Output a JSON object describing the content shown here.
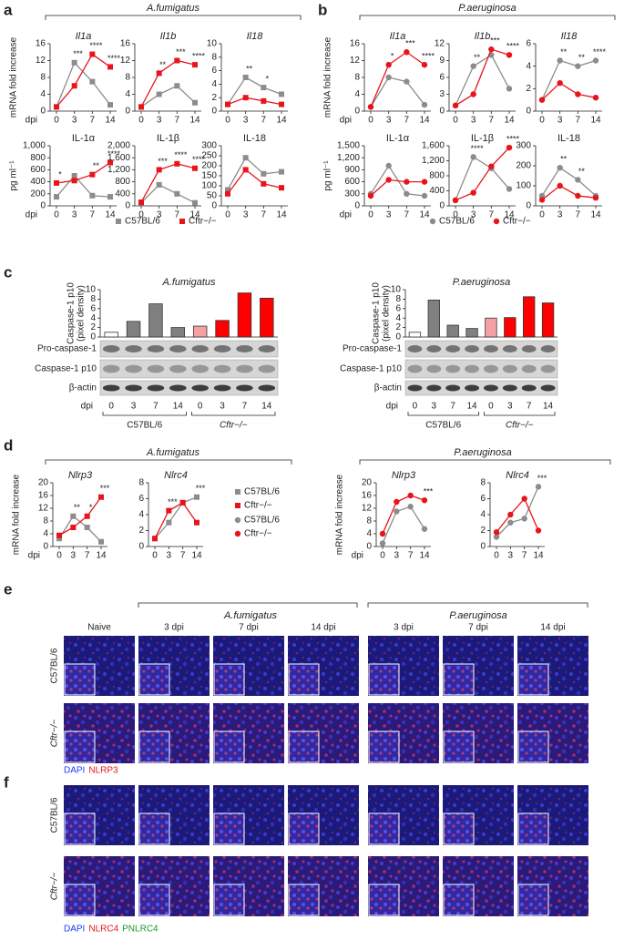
{
  "panels": {
    "a": {
      "label": "a",
      "header": "A.fumigatus"
    },
    "b": {
      "label": "b",
      "header": "P.aeruginosa"
    },
    "c": {
      "label": "c"
    },
    "d": {
      "label": "d",
      "headers": [
        "A.fumigatus",
        "P.aeruginosa"
      ]
    },
    "e": {
      "label": "e",
      "groups": [
        "A.fumigatus",
        "P.aeruginosa"
      ],
      "columns": [
        "Naive",
        "3 dpi",
        "7 dpi",
        "14 dpi",
        "3 dpi",
        "7 dpi",
        "14 dpi"
      ],
      "rows": [
        "C57BL/6",
        "Cftr−/−"
      ],
      "stain": [
        "DAPI",
        "NLRP3"
      ]
    },
    "f": {
      "label": "f",
      "rows": [
        "C57BL/6",
        "Cftr−/−"
      ],
      "stain": [
        "DAPI",
        "NLRC4",
        "PNLRC4"
      ]
    }
  },
  "chart_data": [
    {
      "type": "line",
      "title": "Il1a",
      "ylabel": "mRNA fold increase",
      "xlabel": "dpi",
      "categories": [
        "0",
        "3",
        "7",
        "14"
      ],
      "ylim": [
        0,
        16
      ],
      "yticks": [
        0,
        4,
        8,
        12,
        16
      ],
      "series": [
        {
          "name": "C57BL/6",
          "color": "#8c8c8c",
          "marker": "square",
          "values": [
            1,
            11.5,
            7,
            1.5
          ]
        },
        {
          "name": "Cftr−/−",
          "color": "#e8141b",
          "marker": "square",
          "values": [
            1,
            6,
            13.5,
            10.5
          ]
        }
      ],
      "annotations": [
        {
          "x": "3",
          "text": "***"
        },
        {
          "x": "7",
          "text": "****"
        },
        {
          "x": "14",
          "text": "****"
        }
      ]
    },
    {
      "type": "line",
      "title": "Il1b",
      "categories": [
        "0",
        "3",
        "7",
        "14"
      ],
      "ylim": [
        0,
        16
      ],
      "yticks": [
        0,
        4,
        8,
        12,
        16
      ],
      "series": [
        {
          "name": "C57BL/6",
          "color": "#8c8c8c",
          "marker": "square",
          "values": [
            1,
            4,
            6,
            2
          ]
        },
        {
          "name": "Cftr−/−",
          "color": "#e8141b",
          "marker": "square",
          "values": [
            1,
            9,
            12,
            11
          ]
        }
      ],
      "annotations": [
        {
          "x": "3",
          "text": "**"
        },
        {
          "x": "7",
          "text": "***"
        },
        {
          "x": "14",
          "text": "****"
        }
      ]
    },
    {
      "type": "line",
      "title": "Il18",
      "categories": [
        "0",
        "3",
        "7",
        "14"
      ],
      "ylim": [
        0,
        10
      ],
      "yticks": [
        0,
        2,
        4,
        6,
        8,
        10
      ],
      "series": [
        {
          "name": "C57BL/6",
          "color": "#8c8c8c",
          "marker": "square",
          "values": [
            1,
            5,
            3.5,
            2.5
          ]
        },
        {
          "name": "Cftr−/−",
          "color": "#e8141b",
          "marker": "square",
          "values": [
            1,
            2,
            1.5,
            1
          ]
        }
      ],
      "annotations": [
        {
          "x": "3",
          "text": "**"
        },
        {
          "x": "7",
          "text": "*"
        }
      ]
    },
    {
      "type": "line",
      "title": "IL-1α",
      "ylabel": "pg ml⁻¹",
      "xlabel": "dpi",
      "categories": [
        "0",
        "3",
        "7",
        "14"
      ],
      "ylim": [
        0,
        1000
      ],
      "yticks": [
        0,
        200,
        400,
        600,
        800,
        {
          "value": 1000,
          "label": "1,000"
        }
      ],
      "series": [
        {
          "name": "C57BL/6",
          "color": "#8c8c8c",
          "marker": "square",
          "values": [
            150,
            500,
            170,
            150
          ]
        },
        {
          "name": "Cftr−/−",
          "color": "#e8141b",
          "marker": "square",
          "values": [
            380,
            420,
            520,
            720
          ]
        }
      ],
      "annotations": [
        {
          "x": "0",
          "text": "*"
        },
        {
          "x": "7",
          "text": "**"
        },
        {
          "x": "14",
          "text": "****"
        }
      ]
    },
    {
      "type": "line",
      "title": "IL-1β",
      "categories": [
        "0",
        "3",
        "7",
        "14"
      ],
      "ylim": [
        0,
        2000
      ],
      "yticks": [
        0,
        400,
        800,
        {
          "value": 1200,
          "label": "1,200"
        },
        {
          "value": 1600,
          "label": "1,600"
        },
        {
          "value": 2000,
          "label": "2,000"
        }
      ],
      "series": [
        {
          "name": "C57BL/6",
          "color": "#8c8c8c",
          "marker": "square",
          "values": [
            100,
            700,
            400,
            100
          ]
        },
        {
          "name": "Cftr−/−",
          "color": "#e8141b",
          "marker": "square",
          "values": [
            120,
            1200,
            1400,
            1250
          ]
        }
      ],
      "annotations": [
        {
          "x": "3",
          "text": "***"
        },
        {
          "x": "7",
          "text": "****"
        },
        {
          "x": "14",
          "text": "****"
        }
      ]
    },
    {
      "type": "line",
      "title": "IL-18",
      "categories": [
        "0",
        "3",
        "7",
        "14"
      ],
      "ylim": [
        0,
        300
      ],
      "yticks": [
        0,
        50,
        100,
        150,
        200,
        250,
        300
      ],
      "series": [
        {
          "name": "C57BL/6",
          "color": "#8c8c8c",
          "marker": "square",
          "values": [
            80,
            240,
            160,
            170
          ]
        },
        {
          "name": "Cftr−/−",
          "color": "#e8141b",
          "marker": "square",
          "values": [
            60,
            180,
            110,
            90
          ]
        }
      ]
    },
    {
      "type": "line",
      "title": "Il1a",
      "ylabel": "mRNA fold increase",
      "xlabel": "dpi",
      "categories": [
        "0",
        "3",
        "7",
        "14"
      ],
      "ylim": [
        0,
        16
      ],
      "yticks": [
        0,
        4,
        8,
        12,
        16
      ],
      "series": [
        {
          "name": "C57BL/6",
          "color": "#8c8c8c",
          "marker": "circle",
          "values": [
            1,
            8,
            7,
            1.5
          ]
        },
        {
          "name": "Cftr−/−",
          "color": "#e8141b",
          "marker": "circle",
          "values": [
            1,
            11,
            14,
            11
          ]
        }
      ],
      "annotations": [
        {
          "x": "3",
          "text": "*"
        },
        {
          "x": "7",
          "text": "***"
        },
        {
          "x": "14",
          "text": "****"
        }
      ]
    },
    {
      "type": "line",
      "title": "Il1b",
      "categories": [
        "0",
        "3",
        "7",
        "14"
      ],
      "ylim": [
        0,
        12
      ],
      "yticks": [
        0,
        3,
        6,
        9,
        12
      ],
      "series": [
        {
          "name": "C57BL/6",
          "color": "#8c8c8c",
          "marker": "circle",
          "values": [
            1,
            8,
            10,
            4
          ]
        },
        {
          "name": "Cftr−/−",
          "color": "#e8141b",
          "marker": "circle",
          "values": [
            1,
            3,
            11,
            10
          ]
        }
      ],
      "annotations": [
        {
          "x": "3",
          "text": "**"
        },
        {
          "x": "7",
          "text": "***"
        },
        {
          "x": "14",
          "text": "****"
        }
      ]
    },
    {
      "type": "line",
      "title": "Il18",
      "categories": [
        "0",
        "3",
        "7",
        "14"
      ],
      "ylim": [
        0,
        6
      ],
      "yticks": [
        0,
        2,
        4,
        6
      ],
      "series": [
        {
          "name": "C57BL/6",
          "color": "#8c8c8c",
          "marker": "circle",
          "values": [
            1,
            4.5,
            4,
            4.5
          ]
        },
        {
          "name": "Cftr−/−",
          "color": "#e8141b",
          "marker": "circle",
          "values": [
            1,
            2.5,
            1.5,
            1.2
          ]
        }
      ],
      "annotations": [
        {
          "x": "3",
          "text": "**"
        },
        {
          "x": "7",
          "text": "**"
        },
        {
          "x": "14",
          "text": "****"
        }
      ]
    },
    {
      "type": "line",
      "title": "IL-1α",
      "ylabel": "pg ml⁻¹",
      "xlabel": "dpi",
      "categories": [
        "0",
        "3",
        "7",
        "14"
      ],
      "ylim": [
        0,
        1500
      ],
      "yticks": [
        0,
        300,
        600,
        900,
        {
          "value": 1200,
          "label": "1,200"
        },
        {
          "value": 1500,
          "label": "1,500"
        }
      ],
      "series": [
        {
          "name": "C57BL/6",
          "color": "#8c8c8c",
          "marker": "circle",
          "values": [
            300,
            1000,
            300,
            250
          ]
        },
        {
          "name": "Cftr−/−",
          "color": "#e8141b",
          "marker": "circle",
          "values": [
            250,
            650,
            600,
            600
          ]
        }
      ]
    },
    {
      "type": "line",
      "title": "IL-1β",
      "categories": [
        "0",
        "3",
        "7",
        "14"
      ],
      "ylim": [
        0,
        1600
      ],
      "yticks": [
        0,
        400,
        800,
        {
          "value": 1200,
          "label": "1,200"
        },
        {
          "value": 1600,
          "label": "1,600"
        }
      ],
      "series": [
        {
          "name": "C57BL/6",
          "color": "#8c8c8c",
          "marker": "circle",
          "values": [
            150,
            1300,
            1000,
            450
          ]
        },
        {
          "name": "Cftr−/−",
          "color": "#e8141b",
          "marker": "circle",
          "values": [
            150,
            350,
            1050,
            1550
          ]
        }
      ],
      "annotations": [
        {
          "x": "3",
          "text": "****"
        },
        {
          "x": "14",
          "text": "****"
        }
      ]
    },
    {
      "type": "line",
      "title": "IL-18",
      "categories": [
        "0",
        "3",
        "7",
        "14"
      ],
      "ylim": [
        0,
        300
      ],
      "yticks": [
        0,
        100,
        200,
        300
      ],
      "series": [
        {
          "name": "C57BL/6",
          "color": "#8c8c8c",
          "marker": "circle",
          "values": [
            50,
            190,
            130,
            50
          ]
        },
        {
          "name": "Cftr−/−",
          "color": "#e8141b",
          "marker": "circle",
          "values": [
            30,
            100,
            50,
            40
          ]
        }
      ],
      "annotations": [
        {
          "x": "3",
          "text": "**"
        },
        {
          "x": "7",
          "text": "**"
        }
      ]
    },
    {
      "type": "bar",
      "title": "A.fumigatus",
      "ylabel": [
        "Caspase-1 p10",
        "(pixel density)"
      ],
      "xlabel": "dpi",
      "categories": [
        "0",
        "3",
        "7",
        "14",
        "0",
        "3",
        "7",
        "14"
      ],
      "values": [
        1,
        3.3,
        7,
        2,
        2.3,
        3.5,
        9.3,
        8.2
      ],
      "colors": [
        "#ffffff",
        "#808080",
        "#808080",
        "#808080",
        "#f5a0a4",
        "#ff0000",
        "#ff0000",
        "#ff0000"
      ],
      "ylim": [
        0,
        10
      ],
      "yticks": [
        0,
        2,
        4,
        6,
        8,
        10
      ],
      "blots": [
        "Pro-caspase-1",
        "Caspase-1 p10",
        "β-actin"
      ],
      "groups": [
        "C57BL/6",
        "Cftr−/−"
      ]
    },
    {
      "type": "bar",
      "title": "P.aeruginosa",
      "ylabel": [
        "Caspase-1 p10",
        "(pixel density)"
      ],
      "xlabel": "dpi",
      "categories": [
        "0",
        "3",
        "7",
        "14",
        "0",
        "3",
        "7",
        "14"
      ],
      "values": [
        1,
        7.8,
        2.5,
        1.8,
        4,
        4.1,
        8.5,
        7.2
      ],
      "colors": [
        "#ffffff",
        "#808080",
        "#808080",
        "#808080",
        "#f5a0a4",
        "#ff0000",
        "#ff0000",
        "#ff0000"
      ],
      "ylim": [
        0,
        10
      ],
      "yticks": [
        0,
        2,
        4,
        6,
        8,
        10
      ],
      "blots": [
        "Pro-caspase-1",
        "Caspase-1 p10",
        "β-actin"
      ],
      "groups": [
        "C57BL/6",
        "Cftr−/−"
      ]
    },
    {
      "type": "line",
      "title": "Nlrp3",
      "ylabel": "mRNA fold increase",
      "xlabel": "dpi",
      "categories": [
        "0",
        "3",
        "7",
        "14"
      ],
      "ylim": [
        0,
        20
      ],
      "yticks": [
        0,
        4,
        8,
        12,
        16,
        20
      ],
      "series": [
        {
          "name": "C57BL/6",
          "color": "#8c8c8c",
          "marker": "square",
          "values": [
            2.5,
            9.5,
            6,
            1.5
          ]
        },
        {
          "name": "Cftr−/−",
          "color": "#e8141b",
          "marker": "square",
          "values": [
            3.5,
            6,
            9.5,
            15.5
          ]
        }
      ],
      "annotations": [
        {
          "x": "3",
          "text": "**"
        },
        {
          "x": "7",
          "text": "*"
        },
        {
          "x": "14",
          "text": "***"
        }
      ]
    },
    {
      "type": "line",
      "title": "Nlrc4",
      "categories": [
        "0",
        "3",
        "7",
        "14"
      ],
      "ylim": [
        0,
        8
      ],
      "yticks": [
        0,
        2,
        4,
        6,
        8
      ],
      "series": [
        {
          "name": "C57BL/6",
          "color": "#8c8c8c",
          "marker": "square",
          "values": [
            1,
            3,
            5.5,
            6.2
          ]
        },
        {
          "name": "Cftr−/−",
          "color": "#e8141b",
          "marker": "square",
          "values": [
            1,
            4.5,
            5.5,
            3
          ]
        }
      ],
      "annotations": [
        {
          "x": "3",
          "text": "***"
        },
        {
          "x": "14",
          "text": "***"
        }
      ]
    },
    {
      "type": "line",
      "title": "Nlrp3",
      "ylabel": "mRNA fold increase",
      "xlabel": "dpi",
      "categories": [
        "0",
        "3",
        "7",
        "14"
      ],
      "ylim": [
        0,
        20
      ],
      "yticks": [
        0,
        4,
        8,
        12,
        16,
        20
      ],
      "series": [
        {
          "name": "C57BL/6",
          "color": "#8c8c8c",
          "marker": "circle",
          "values": [
            1,
            11,
            12.5,
            5.5
          ]
        },
        {
          "name": "Cftr−/−",
          "color": "#e8141b",
          "marker": "circle",
          "values": [
            4,
            14,
            16,
            14.5
          ]
        }
      ],
      "annotations": [
        {
          "x": "14",
          "text": "***"
        }
      ]
    },
    {
      "type": "line",
      "title": "Nlrc4",
      "categories": [
        "0",
        "3",
        "7",
        "14"
      ],
      "ylim": [
        0,
        8
      ],
      "yticks": [
        0,
        2,
        4,
        6,
        8
      ],
      "series": [
        {
          "name": "C57BL/6",
          "color": "#8c8c8c",
          "marker": "circle",
          "values": [
            1.2,
            3,
            3.5,
            7.5
          ]
        },
        {
          "name": "Cftr−/−",
          "color": "#e8141b",
          "marker": "circle",
          "values": [
            1.8,
            4,
            6,
            2
          ]
        }
      ],
      "annotations": [
        {
          "x": "14",
          "text": "***"
        }
      ]
    }
  ]
}
